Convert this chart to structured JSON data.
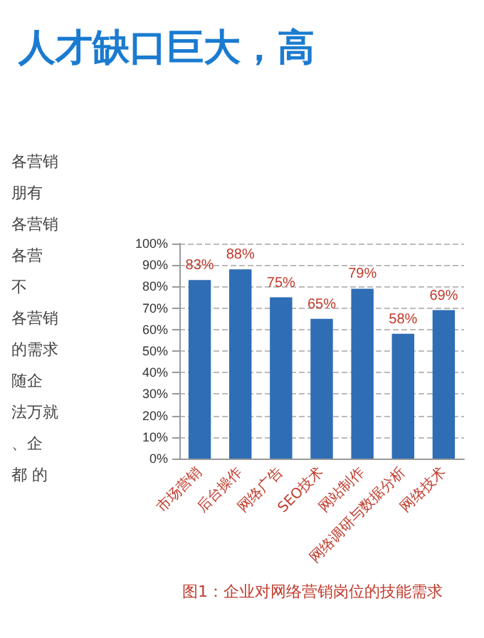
{
  "chart_data": {
    "type": "bar",
    "title": "人才缺口巨大，高",
    "categories": [
      "市场营销",
      "后台操作",
      "网络广告",
      "SEO技术",
      "网站制作",
      "网络调研与数据分析",
      "网络技术"
    ],
    "values": [
      83,
      88,
      75,
      65,
      79,
      58,
      69
    ],
    "value_labels": [
      "83%",
      "88%",
      "75%",
      "65%",
      "79%",
      "58%",
      "69%"
    ],
    "color": "#2f6db5",
    "ylim": [
      0,
      100
    ],
    "yticks": [
      {
        "value": 0,
        "label": "0%"
      },
      {
        "value": 10,
        "label": "10%"
      },
      {
        "value": 20,
        "label": "20%"
      },
      {
        "value": 30,
        "label": "30%"
      },
      {
        "value": 40,
        "label": "40%"
      },
      {
        "value": 50,
        "label": "50%"
      },
      {
        "value": 60,
        "label": "60%"
      },
      {
        "value": 70,
        "label": "70%"
      },
      {
        "value": 80,
        "label": "80%"
      },
      {
        "value": 90,
        "label": "90%"
      },
      {
        "value": 100,
        "label": "100%"
      }
    ],
    "grid": "y",
    "annotations": [
      "图1：企业对网络营销岗位的技能需求",
      "各营销",
      "朋有",
      "各营销",
      "各营",
      "不",
      "各营销",
      "的需求",
      "随企",
      "法万就",
      "、企",
      "都 的"
    ]
  }
}
